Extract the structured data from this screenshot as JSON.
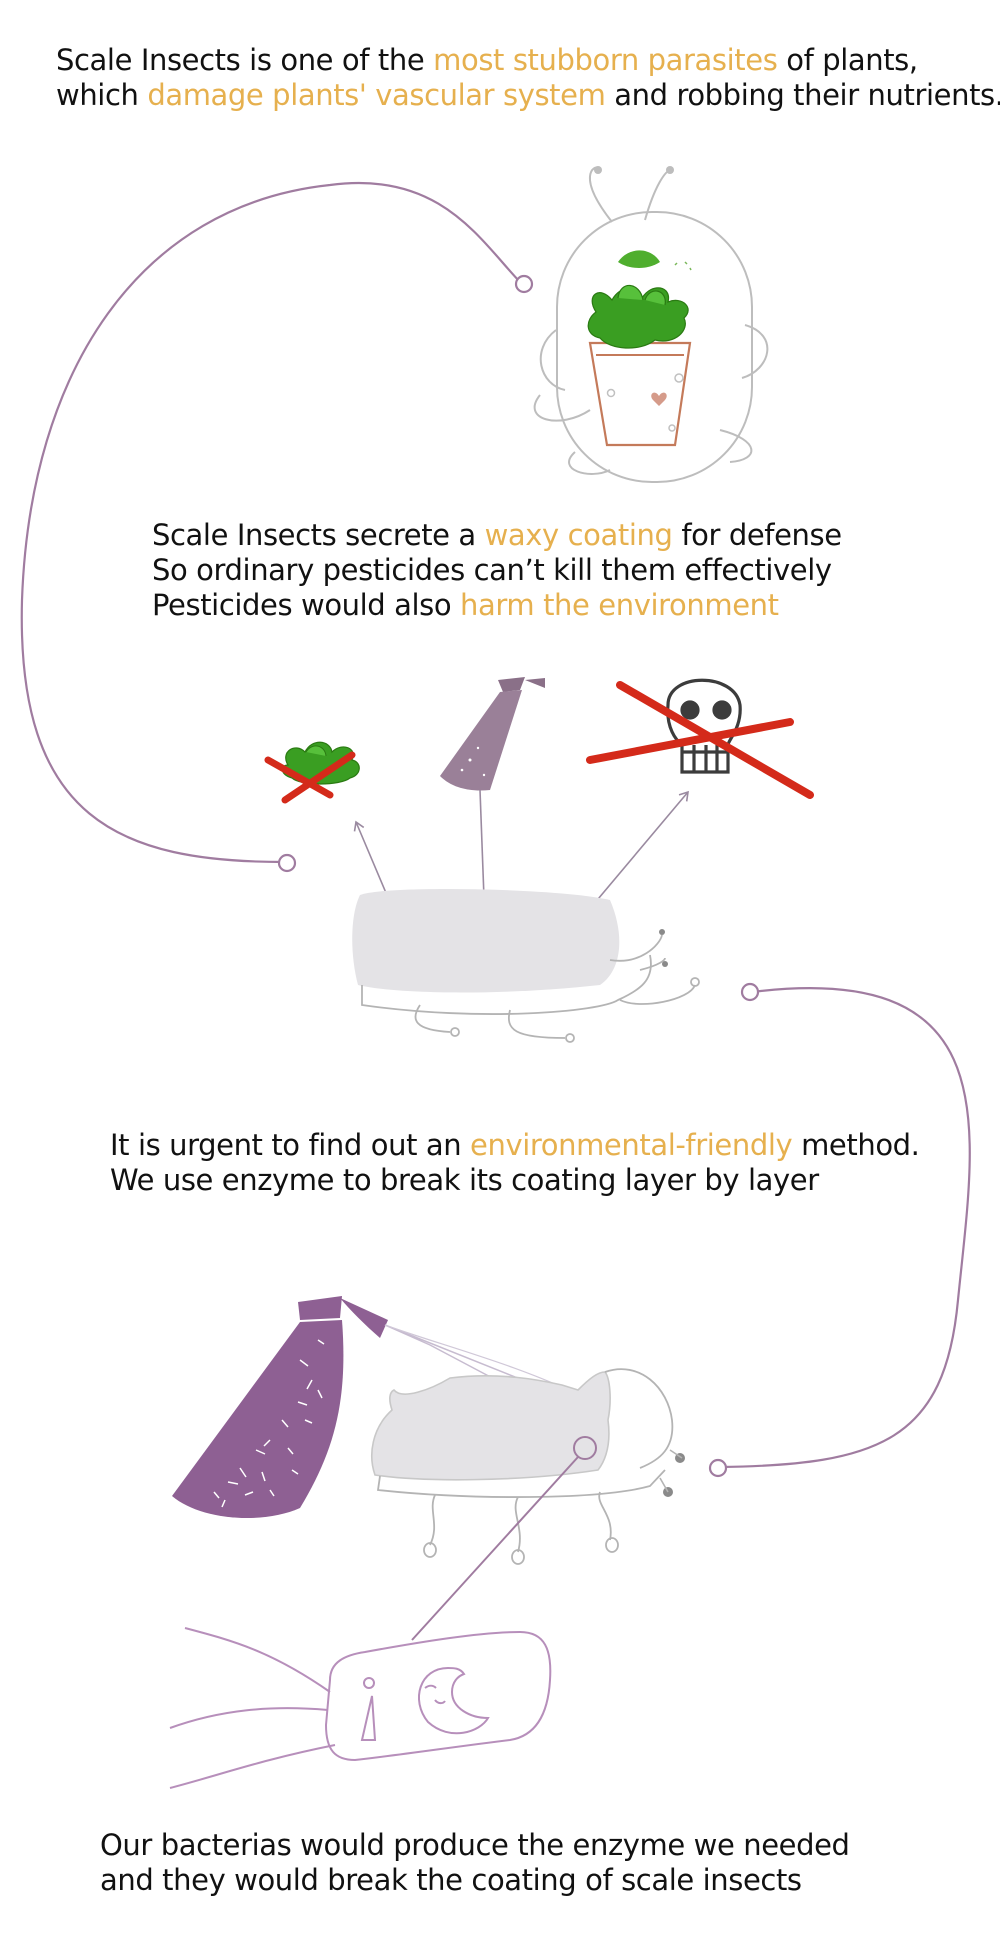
{
  "intro": {
    "l1_a": "Scale Insects is one of the ",
    "l1_hl": "most stubborn parasites",
    "l1_b": " of plants,",
    "l2_a": "which ",
    "l2_hl": "damage plants' vascular system",
    "l2_b": " and robbing their nutrients."
  },
  "waxy": {
    "l1_a": "Scale Insects secrete a ",
    "l1_hl": "waxy coating",
    "l1_b": " for defense",
    "l2": "So ordinary pesticides can’t kill them effectively",
    "l3_a": "Pesticides would also ",
    "l3_hl": "harm the environment"
  },
  "urgent": {
    "l1_a": "It is urgent to find out an ",
    "l1_hl": "environmental-friendly",
    "l1_b": " method.",
    "l2": "We use enzyme to break its coating layer by layer"
  },
  "bacteria": {
    "l1": "Our bacterias would produce the enzyme we needed",
    "l2": "and they would break the coating of scale insects"
  },
  "colors": {
    "highlight": "#e6b04e",
    "connector": "#a07ca0",
    "spray_bottle_small": "#9a8098",
    "spray_bottle_large": "#8e6093",
    "plant_green": "#3a9e22",
    "pot": "#c47a5a",
    "cross": "#d42a1a",
    "insect_shell": "#e4e3e6",
    "outline": "#b8b8b8",
    "bacterium": "#b78fbb"
  },
  "icons": [
    "potted-plant-icon",
    "scale-insect-icon",
    "spray-bottle-icon",
    "skull-icon",
    "cross-icon",
    "bacterium-icon"
  ]
}
